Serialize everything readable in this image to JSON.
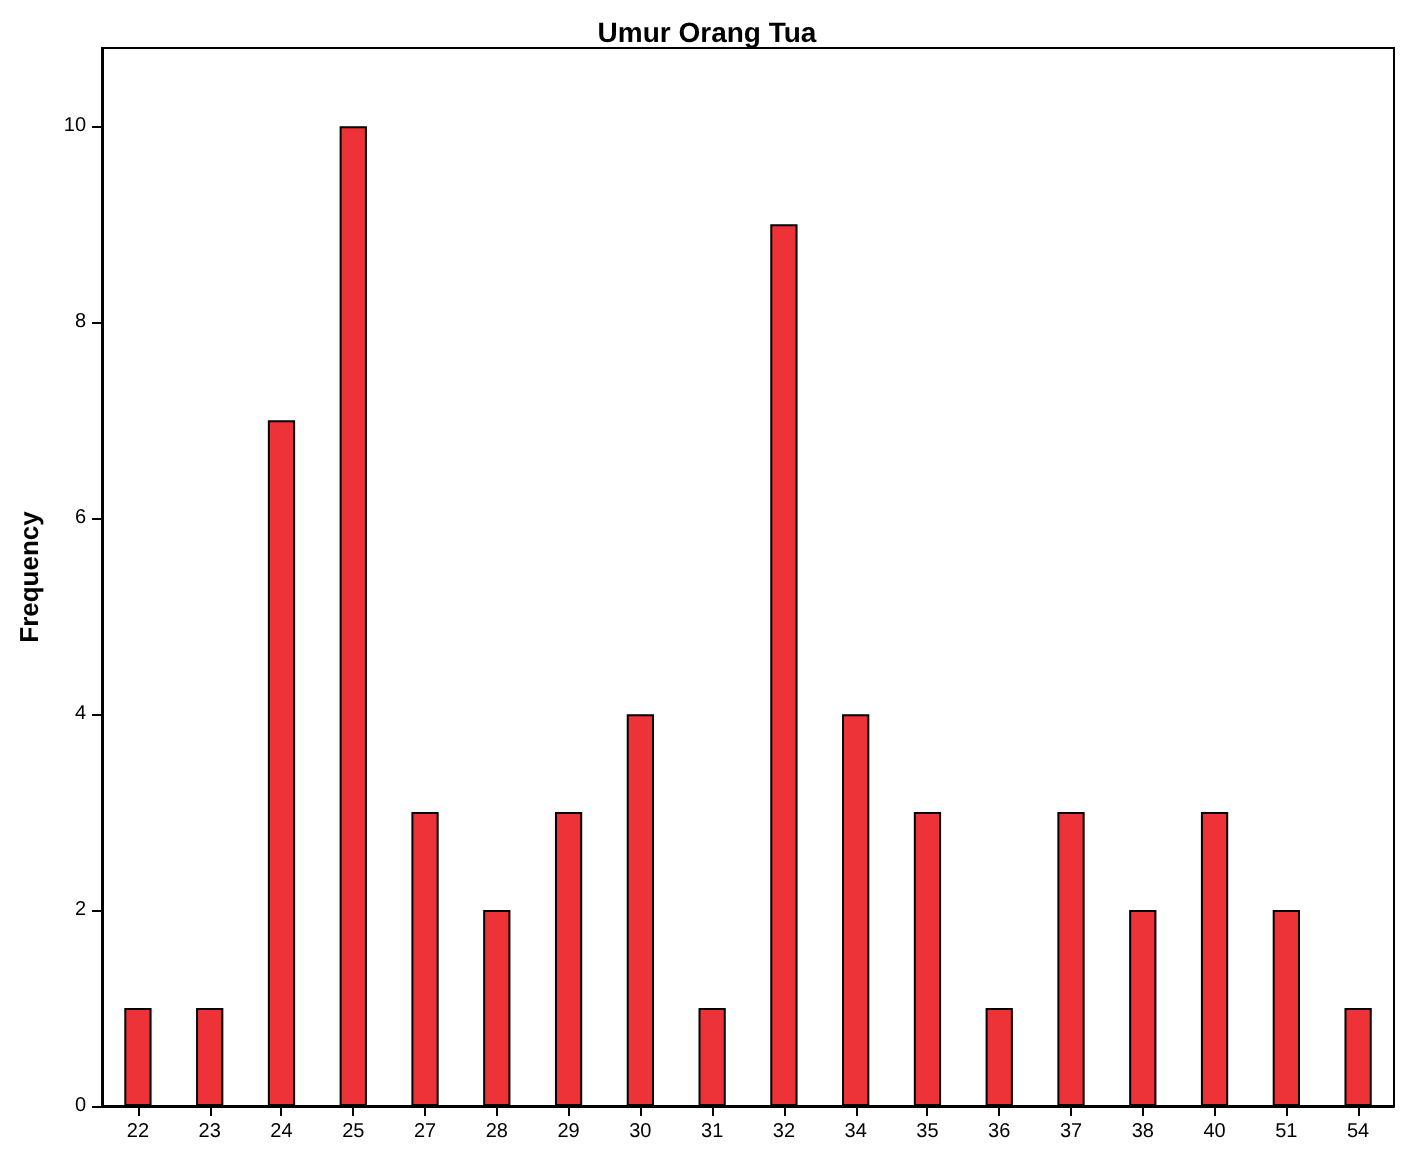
{
  "chart_data": {
    "type": "bar",
    "title": "Umur Orang Tua",
    "ylabel": "Frequency",
    "categories": [
      "22",
      "23",
      "24",
      "25",
      "27",
      "28",
      "29",
      "30",
      "31",
      "32",
      "34",
      "35",
      "36",
      "37",
      "38",
      "40",
      "51",
      "54"
    ],
    "values": [
      1,
      1,
      7,
      10,
      3,
      2,
      3,
      4,
      1,
      9,
      4,
      3,
      1,
      3,
      2,
      3,
      2,
      1
    ],
    "color": "#ee3338",
    "ylim": [
      0,
      10.8
    ],
    "yticks": [
      0,
      2,
      4,
      6,
      8,
      10
    ],
    "grid": false
  }
}
